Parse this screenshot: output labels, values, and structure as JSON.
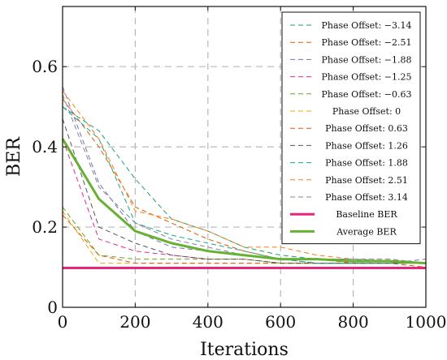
{
  "chart_data": {
    "type": "line",
    "title": "",
    "xlabel": "Iterations",
    "ylabel": "BER",
    "xlim": [
      0,
      1000
    ],
    "ylim": [
      0,
      0.75
    ],
    "xticks": [
      0,
      200,
      400,
      600,
      800,
      1000
    ],
    "yticks": [
      0,
      0.2,
      0.4,
      0.6
    ],
    "ytick_labels": [
      "0",
      "0.2",
      "0.4",
      "0.6"
    ],
    "grid": true,
    "legend_position": "top-right",
    "x": [
      0,
      100,
      200,
      300,
      400,
      500,
      600,
      700,
      800,
      900,
      1000
    ],
    "series": [
      {
        "name": "Phase Offset: −3.14",
        "style": "dashed",
        "color": "#1b9e77",
        "values": [
          0.5,
          0.44,
          0.32,
          0.22,
          0.19,
          0.15,
          0.13,
          0.12,
          0.12,
          0.115,
          0.11
        ]
      },
      {
        "name": "Phase Offset: −2.51",
        "style": "dashed",
        "color": "#d95f02",
        "values": [
          0.52,
          0.4,
          0.25,
          0.21,
          0.17,
          0.14,
          0.12,
          0.12,
          0.11,
          0.11,
          0.11
        ]
      },
      {
        "name": "Phase Offset: −1.88",
        "style": "dashed",
        "color": "#7570b3",
        "values": [
          0.55,
          0.31,
          0.19,
          0.15,
          0.14,
          0.13,
          0.12,
          0.11,
          0.11,
          0.11,
          0.12
        ]
      },
      {
        "name": "Phase Offset: −1.25",
        "style": "dashed",
        "color": "#e7298a",
        "values": [
          0.42,
          0.17,
          0.14,
          0.13,
          0.12,
          0.12,
          0.11,
          0.11,
          0.11,
          0.11,
          0.11
        ]
      },
      {
        "name": "Phase Offset: −0.63",
        "style": "dashed",
        "color": "#66a61e",
        "values": [
          0.25,
          0.13,
          0.12,
          0.12,
          0.12,
          0.12,
          0.11,
          0.11,
          0.11,
          0.11,
          0.11
        ]
      },
      {
        "name": "Phase Offset: 0",
        "style": "dashed",
        "color": "#e6ab02",
        "values": [
          0.24,
          0.11,
          0.11,
          0.11,
          0.11,
          0.11,
          0.11,
          0.11,
          0.11,
          0.11,
          0.11
        ]
      },
      {
        "name": "Phase Offset: 0.63",
        "style": "dashed",
        "color": "#e6550d",
        "values": [
          0.23,
          0.13,
          0.11,
          0.11,
          0.11,
          0.11,
          0.11,
          0.11,
          0.11,
          0.11,
          0.1
        ]
      },
      {
        "name": "Phase Offset: 1.26",
        "style": "dashed",
        "color": "#555555",
        "values": [
          0.47,
          0.2,
          0.16,
          0.13,
          0.12,
          0.12,
          0.11,
          0.11,
          0.11,
          0.11,
          0.11
        ]
      },
      {
        "name": "Phase Offset: 1.88",
        "style": "dashed",
        "color": "#17a589",
        "values": [
          0.5,
          0.42,
          0.21,
          0.18,
          0.16,
          0.14,
          0.12,
          0.11,
          0.11,
          0.11,
          0.11
        ]
      },
      {
        "name": "Phase Offset: 2.51",
        "style": "dashed",
        "color": "#ff7f0e",
        "values": [
          0.54,
          0.42,
          0.24,
          0.22,
          0.19,
          0.15,
          0.15,
          0.13,
          0.12,
          0.12,
          0.11
        ]
      },
      {
        "name": "Phase Offset: 3.14",
        "style": "dashed",
        "color": "#8080a0",
        "values": [
          0.53,
          0.3,
          0.21,
          0.17,
          0.15,
          0.13,
          0.12,
          0.12,
          0.12,
          0.12,
          0.11
        ]
      },
      {
        "name": "Baseline BER",
        "style": "solid",
        "color": "#e6287a",
        "values": [
          0.098,
          0.098,
          0.098,
          0.098,
          0.098,
          0.098,
          0.098,
          0.098,
          0.098,
          0.098,
          0.098
        ]
      },
      {
        "name": "Average BER",
        "style": "solid",
        "color": "#66b032",
        "values": [
          0.42,
          0.27,
          0.19,
          0.16,
          0.14,
          0.13,
          0.12,
          0.12,
          0.115,
          0.115,
          0.11
        ]
      }
    ]
  }
}
